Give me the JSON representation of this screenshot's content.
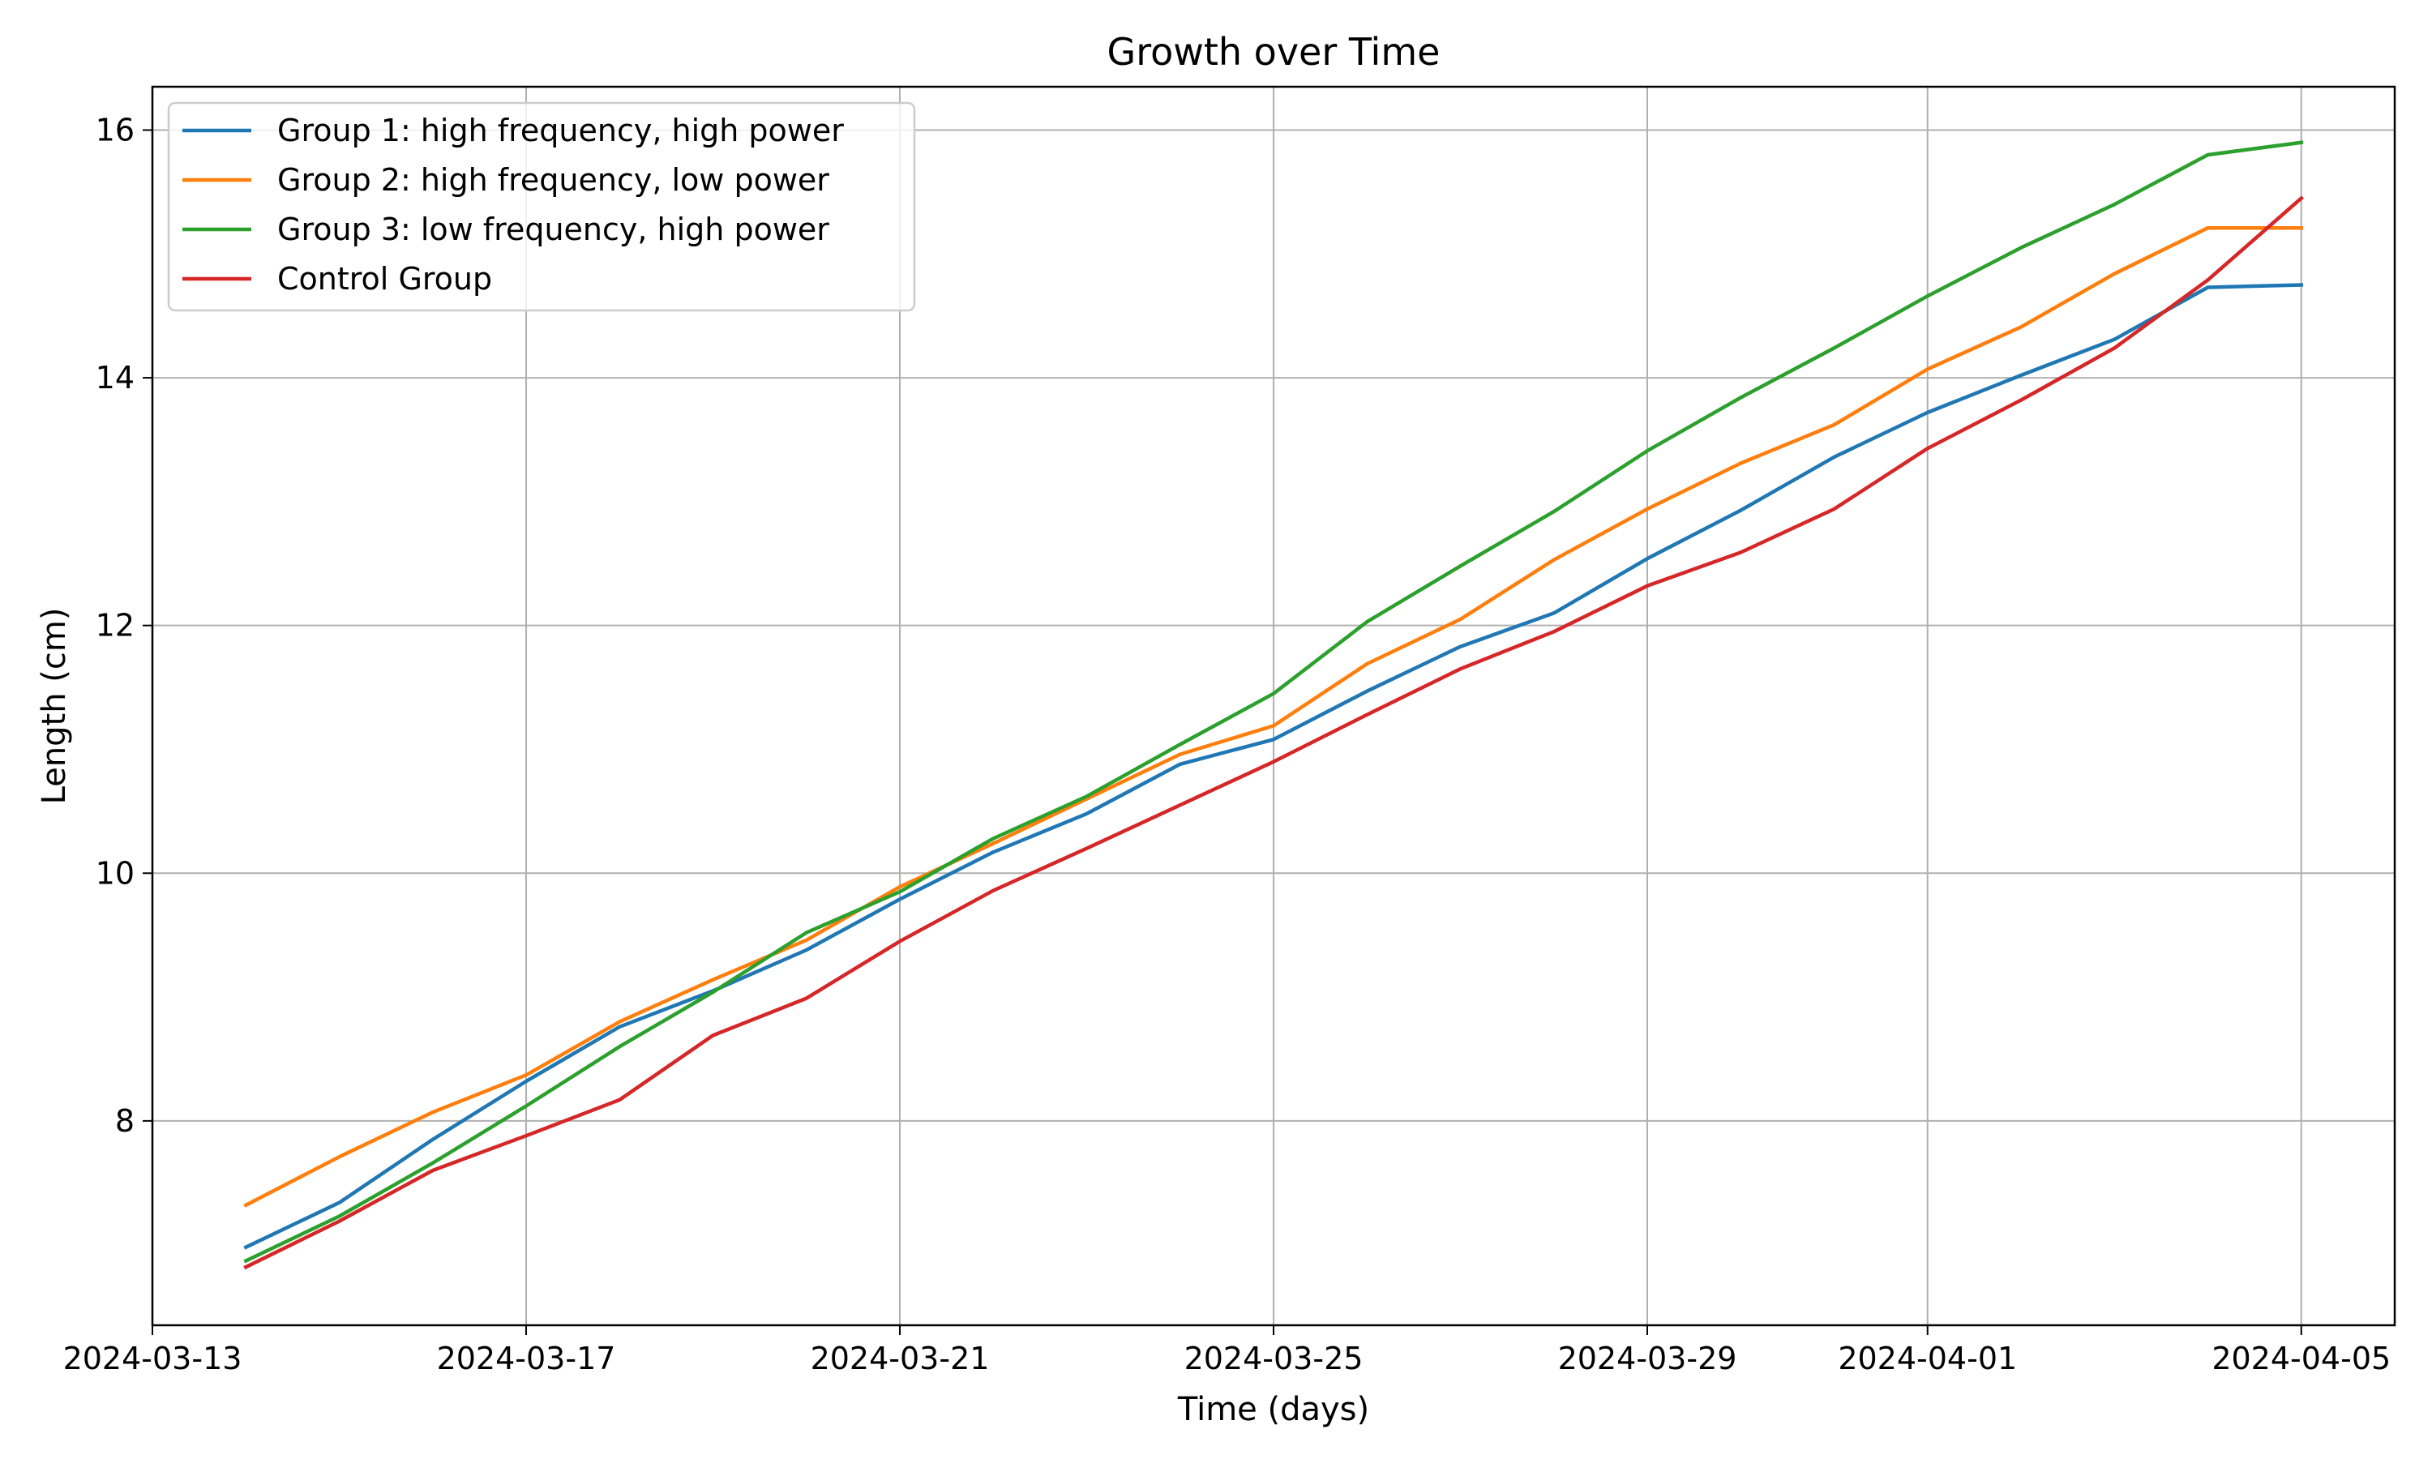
{
  "chart_data": {
    "type": "line",
    "title": "Growth over Time",
    "xlabel": "Time (days)",
    "ylabel": "Length (cm)",
    "x": [
      "2024-03-14",
      "2024-03-15",
      "2024-03-16",
      "2024-03-17",
      "2024-03-18",
      "2024-03-19",
      "2024-03-20",
      "2024-03-21",
      "2024-03-22",
      "2024-03-23",
      "2024-03-24",
      "2024-03-25",
      "2024-03-26",
      "2024-03-27",
      "2024-03-28",
      "2024-03-29",
      "2024-03-30",
      "2024-03-31",
      "2024-04-01",
      "2024-04-02",
      "2024-04-03",
      "2024-04-04",
      "2024-04-05"
    ],
    "xlim": [
      "2024-03-13",
      "2024-04-06"
    ],
    "ylim": [
      6.35,
      16.35
    ],
    "x_ticks": [
      "2024-03-13",
      "2024-03-17",
      "2024-03-21",
      "2024-03-25",
      "2024-03-29",
      "2024-04-01",
      "2024-04-05"
    ],
    "y_ticks": [
      8,
      10,
      12,
      14,
      16
    ],
    "grid": true,
    "legend_position": "top-left",
    "series": [
      {
        "name": "Group 1: high frequency, high power",
        "color": "#1f77b4",
        "values": [
          6.98,
          7.34,
          7.85,
          8.32,
          8.76,
          9.05,
          9.38,
          9.79,
          10.17,
          10.48,
          10.88,
          11.08,
          11.47,
          11.83,
          12.1,
          12.54,
          12.93,
          13.36,
          13.72,
          14.02,
          14.31,
          14.73,
          14.75
        ]
      },
      {
        "name": "Group 2: high frequency, low power",
        "color": "#ff7f0e",
        "values": [
          7.32,
          7.71,
          8.07,
          8.37,
          8.8,
          9.14,
          9.46,
          9.89,
          10.24,
          10.6,
          10.96,
          11.19,
          11.69,
          12.05,
          12.53,
          12.94,
          13.31,
          13.62,
          14.07,
          14.41,
          14.84,
          15.21,
          15.21
        ]
      },
      {
        "name": "Group 3: low frequency, high power",
        "color": "#2ca02c",
        "values": [
          6.87,
          7.23,
          7.66,
          8.12,
          8.6,
          9.04,
          9.52,
          9.85,
          10.28,
          10.62,
          11.04,
          11.45,
          12.03,
          12.48,
          12.92,
          13.41,
          13.84,
          14.24,
          14.66,
          15.05,
          15.4,
          15.8,
          15.9
        ]
      },
      {
        "name": "Control Group",
        "color": "#d62728",
        "values": [
          6.82,
          7.19,
          7.6,
          7.88,
          8.17,
          8.69,
          8.99,
          9.45,
          9.86,
          10.2,
          10.55,
          10.9,
          11.28,
          11.65,
          11.95,
          12.32,
          12.59,
          12.94,
          13.43,
          13.82,
          14.24,
          14.79,
          15.45
        ]
      }
    ]
  }
}
